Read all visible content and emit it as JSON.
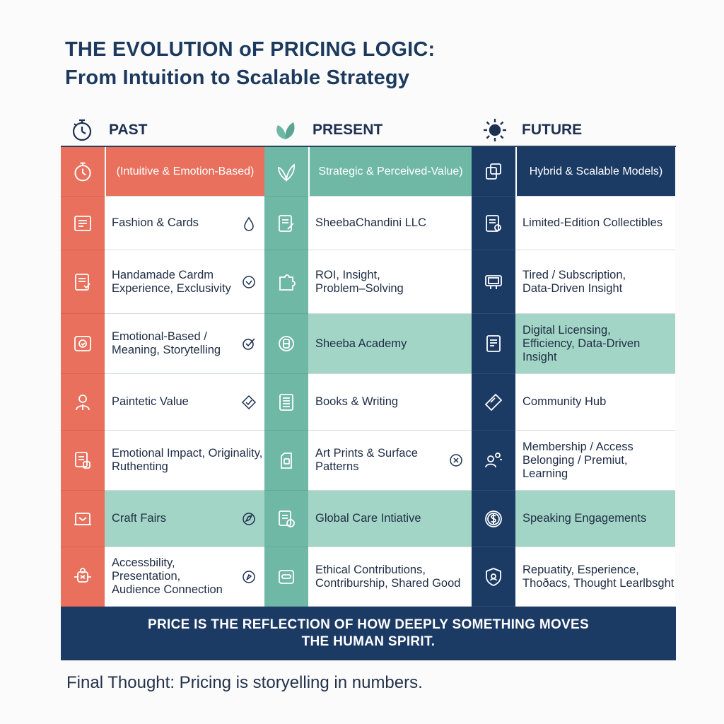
{
  "title": {
    "line1": "THE EVOLUTION oF PRICING LOGIC:",
    "line2": "From Intuition to Scalable Strategy"
  },
  "colors": {
    "past": "#e8705c",
    "present": "#6fb8a6",
    "present_light": "#a3d5c6",
    "future": "#1b3a64"
  },
  "eras": [
    {
      "key": "past",
      "label": "PAST",
      "icon": "stopwatch-icon"
    },
    {
      "key": "present",
      "label": "PRESENT",
      "icon": "leaf-icon"
    },
    {
      "key": "future",
      "label": "FUTURE",
      "icon": "sun-icon"
    }
  ],
  "columns": {
    "past": {
      "heading": "(Intuitive & Emotion-Based)",
      "rows": [
        {
          "lines": [
            "Fashion & Cards"
          ],
          "icon": "clothing-tag-icon",
          "mark": "drop-icon"
        },
        {
          "lines": [
            "Handamade Cardm",
            "Experience, Exclusivity"
          ],
          "icon": "card-icon",
          "mark": "check-circle-icon"
        },
        {
          "lines": [
            "Emotional-Based /",
            "Meaning, Storytelling"
          ],
          "icon": "heart-book-icon",
          "mark": "check-icon"
        },
        {
          "lines": [
            "Paintetic Value"
          ],
          "icon": "person-icon",
          "mark": "diamond-icon"
        },
        {
          "lines": [
            "Emotional Impact, Originality,",
            "Ruthenting"
          ],
          "icon": "documents-icon",
          "mark": ""
        },
        {
          "lines": [
            "Craft Fairs"
          ],
          "icon": "booth-icon",
          "mark": "compass-icon"
        },
        {
          "lines": [
            "Accessbility, Presentation,",
            "Audience Connection"
          ],
          "icon": "handshake-icon",
          "mark": "compass-icon"
        }
      ]
    },
    "present": {
      "heading": "Strategic & Perceived-Value)",
      "rows": [
        {
          "lines": [
            "SheebaChandini LLC"
          ],
          "icon": "document-pen-icon",
          "mark": ""
        },
        {
          "lines": [
            "ROI, Insight,",
            "Problem–Solving"
          ],
          "icon": "puzzle-icon",
          "mark": ""
        },
        {
          "lines": [
            "Sheeba Academy"
          ],
          "icon": "academy-badge-icon",
          "mark": ""
        },
        {
          "lines": [
            "Books & Writing"
          ],
          "icon": "book-icon",
          "mark": ""
        },
        {
          "lines": [
            "Art Prints & Surface",
            "Patterns"
          ],
          "icon": "print-icon",
          "mark": "close-circle-icon"
        },
        {
          "lines": [
            "Global Care Intiative"
          ],
          "icon": "care-icon",
          "mark": ""
        },
        {
          "lines": [
            "Ethical Contributions,",
            "Contriburship, Shared Good"
          ],
          "icon": "donation-icon",
          "mark": ""
        }
      ]
    },
    "future": {
      "heading": "Hybrid & Scalable Models)",
      "rows": [
        {
          "lines": [
            "Limited-Edition Collectibles"
          ],
          "icon": "certificate-icon",
          "mark": ""
        },
        {
          "lines": [
            "Tired / Subscription,",
            "Data-Driven Insight"
          ],
          "icon": "monitor-icon",
          "mark": ""
        },
        {
          "lines": [
            "Digital Licensing,",
            "Efficiency, Data-Driven Insight"
          ],
          "icon": "license-icon",
          "mark": ""
        },
        {
          "lines": [
            "Community Hub"
          ],
          "icon": "ticket-icon",
          "mark": ""
        },
        {
          "lines": [
            "Membership / Access",
            "Belonging / Premiut, Learning"
          ],
          "icon": "members-icon",
          "mark": ""
        },
        {
          "lines": [
            "Speaking Engagements"
          ],
          "icon": "dollar-icon",
          "mark": ""
        },
        {
          "lines": [
            "Repuatity, Esperience,",
            "Thoðacs, Thought Learlbsght"
          ],
          "icon": "shield-icon",
          "mark": ""
        }
      ]
    }
  },
  "banner": {
    "line1": "PRICE IS THE REFLECTION OF HOW DEEPLY SOMETHING MOVES",
    "line2": "THE HUMAN SPIRIT."
  },
  "final_thought": "Final Thought: Pricing is storyelling in numbers."
}
